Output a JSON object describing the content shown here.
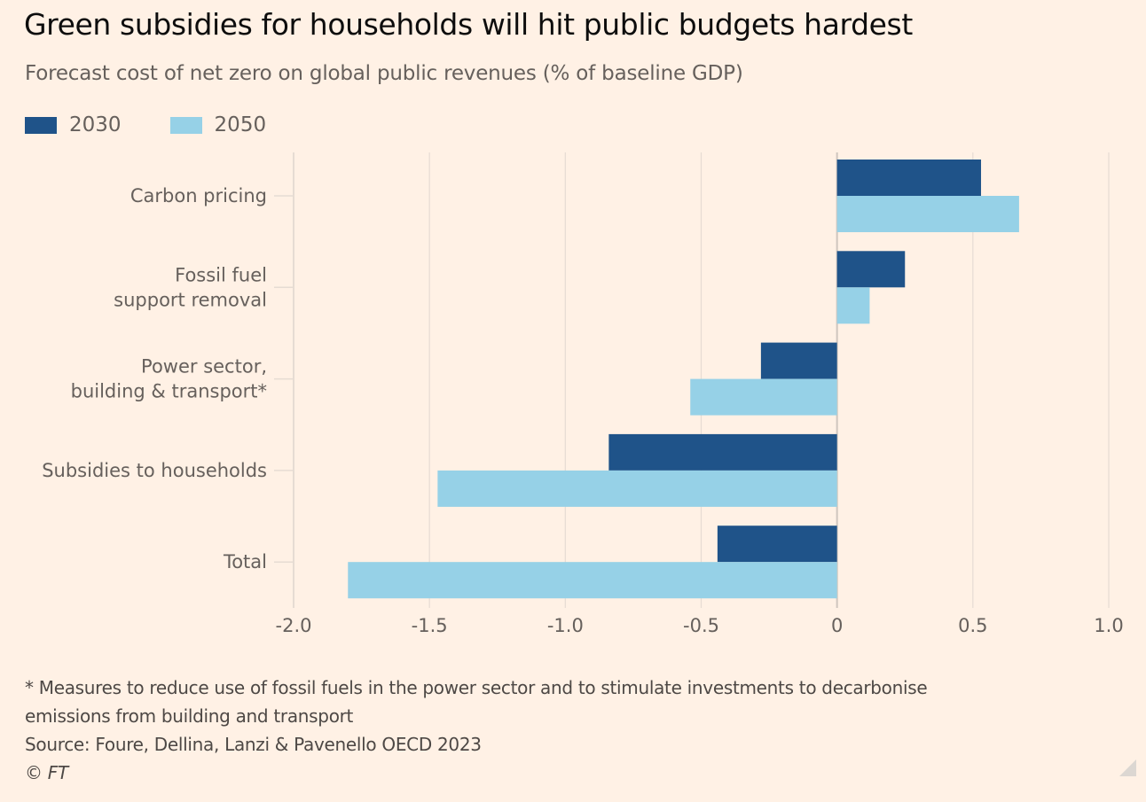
{
  "chart_data": {
    "type": "bar",
    "orientation": "horizontal",
    "title": "Green subsidies for households will hit public budgets hardest",
    "subtitle": "Forecast cost of net zero on global public revenues (% of baseline GDP)",
    "xlabel": "",
    "ylabel": "",
    "categories": [
      [
        "Carbon pricing"
      ],
      [
        "Fossil fuel",
        "support removal"
      ],
      [
        "Power sector,",
        "building & transport*"
      ],
      [
        "Subsidies to households"
      ],
      [
        "Total"
      ]
    ],
    "series": [
      {
        "name": "2030",
        "color": "#1f5389",
        "values": [
          0.53,
          0.25,
          -0.28,
          -0.84,
          -0.44
        ]
      },
      {
        "name": "2050",
        "color": "#96d1e7",
        "values": [
          0.67,
          0.12,
          -0.54,
          -1.47,
          -1.8
        ]
      }
    ],
    "xlim": [
      -2.0,
      1.0
    ],
    "xticks": [
      -2.0,
      -1.5,
      -1.0,
      -0.5,
      0,
      0.5,
      1.0
    ],
    "xtick_labels": [
      "-2.0",
      "-1.5",
      "-1.0",
      "-0.5",
      "0",
      "0.5",
      "1.0"
    ],
    "grid": true,
    "legend_position": "top-left"
  },
  "footnote": {
    "note_line1": "* Measures to reduce use of fossil fuels in the power sector and to stimulate investments to decarbonise",
    "note_line2": "emissions from building and transport",
    "source": "Source: Foure, Dellina, Lanzi & Pavenello OECD 2023",
    "copyright": "© FT"
  },
  "colors": {
    "background": "#fff1e5",
    "grid": "#e6dcd3",
    "zero_line": "#cfc6be"
  }
}
